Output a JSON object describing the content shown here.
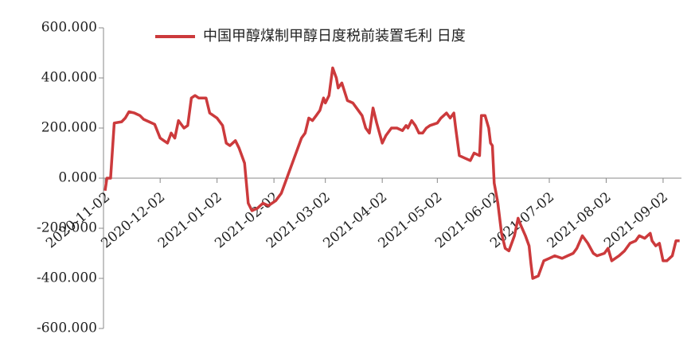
{
  "chart_data": {
    "type": "line",
    "x": [
      "2020-11-02",
      "2020-11-03",
      "2020-11-05",
      "2020-11-07",
      "2020-11-11",
      "2020-11-13",
      "2020-11-15",
      "2020-11-18",
      "2020-11-21",
      "2020-11-23",
      "2020-11-26",
      "2020-11-29",
      "2020-12-02",
      "2020-12-04",
      "2020-12-06",
      "2020-12-08",
      "2020-12-10",
      "2020-12-12",
      "2020-12-15",
      "2020-12-17",
      "2020-12-19",
      "2020-12-21",
      "2020-12-23",
      "2020-12-27",
      "2020-12-29",
      "2021-01-02",
      "2021-01-05",
      "2021-01-07",
      "2021-01-09",
      "2021-01-12",
      "2021-01-14",
      "2021-01-17",
      "2021-01-19",
      "2021-01-21",
      "2021-01-24",
      "2021-01-27",
      "2021-01-30",
      "2021-02-03",
      "2021-02-06",
      "2021-02-09",
      "2021-02-13",
      "2021-02-17",
      "2021-02-19",
      "2021-02-21",
      "2021-02-23",
      "2021-02-25",
      "2021-02-27",
      "2021-03-01",
      "2021-03-02",
      "2021-03-04",
      "2021-03-06",
      "2021-03-08",
      "2021-03-09",
      "2021-03-11",
      "2021-03-14",
      "2021-03-17",
      "2021-03-19",
      "2021-03-22",
      "2021-03-24",
      "2021-03-26",
      "2021-03-28",
      "2021-03-30",
      "2021-04-02",
      "2021-04-04",
      "2021-04-07",
      "2021-04-10",
      "2021-04-13",
      "2021-04-15",
      "2021-04-16",
      "2021-04-18",
      "2021-04-20",
      "2021-04-22",
      "2021-04-24",
      "2021-04-26",
      "2021-04-28",
      "2021-05-02",
      "2021-05-04",
      "2021-05-07",
      "2021-05-09",
      "2021-05-11",
      "2021-05-12",
      "2021-05-14",
      "2021-05-17",
      "2021-05-20",
      "2021-05-22",
      "2021-05-25",
      "2021-05-26",
      "2021-05-28",
      "2021-05-30",
      "2021-05-31",
      "2021-06-01",
      "2021-06-02",
      "2021-06-04",
      "2021-06-06",
      "2021-06-08",
      "2021-06-10",
      "2021-06-13",
      "2021-06-15",
      "2021-06-16",
      "2021-06-19",
      "2021-06-21",
      "2021-06-22",
      "2021-06-23",
      "2021-06-26",
      "2021-06-29",
      "2021-07-02",
      "2021-07-05",
      "2021-07-09",
      "2021-07-12",
      "2021-07-15",
      "2021-07-17",
      "2021-07-20",
      "2021-07-23",
      "2021-07-26",
      "2021-07-28",
      "2021-08-01",
      "2021-08-03",
      "2021-08-05",
      "2021-08-09",
      "2021-08-12",
      "2021-08-15",
      "2021-08-18",
      "2021-08-20",
      "2021-08-23",
      "2021-08-26",
      "2021-08-27",
      "2021-08-29",
      "2021-08-31",
      "2021-09-02",
      "2021-09-04",
      "2021-09-07",
      "2021-09-09",
      "2021-09-11"
    ],
    "series": [
      {
        "name": "中国甲醇煤制甲醇日度税前装置毛利 日度",
        "color": "#cc3a3c",
        "values": [
          -50,
          0,
          0,
          220,
          225,
          240,
          265,
          260,
          250,
          235,
          225,
          215,
          160,
          150,
          140,
          180,
          160,
          230,
          200,
          210,
          320,
          330,
          320,
          320,
          260,
          240,
          210,
          140,
          130,
          150,
          120,
          60,
          -100,
          -130,
          -120,
          -100,
          -110,
          -90,
          -60,
          0,
          80,
          160,
          180,
          240,
          230,
          250,
          270,
          320,
          300,
          330,
          440,
          400,
          360,
          380,
          310,
          300,
          280,
          250,
          200,
          180,
          280,
          220,
          140,
          170,
          200,
          200,
          190,
          210,
          200,
          230,
          210,
          180,
          180,
          200,
          210,
          220,
          240,
          260,
          240,
          260,
          200,
          90,
          80,
          70,
          100,
          90,
          250,
          250,
          200,
          140,
          130,
          -20,
          -100,
          -220,
          -280,
          -290,
          -230,
          -160,
          -180,
          -230,
          -270,
          -340,
          -400,
          -390,
          -330,
          -320,
          -310,
          -320,
          -310,
          -300,
          -280,
          -230,
          -260,
          -300,
          -310,
          -300,
          -280,
          -330,
          -310,
          -290,
          -260,
          -250,
          -230,
          -240,
          -220,
          -250,
          -270,
          -260,
          -330,
          -330,
          -310,
          -250,
          -250
        ]
      }
    ],
    "xlim": [
      "2020-11-02",
      "2021-09-12"
    ],
    "xticks": [
      "2020-11-02",
      "2020-12-02",
      "2021-01-02",
      "2021-02-02",
      "2021-03-02",
      "2021-04-02",
      "2021-05-02",
      "2021-06-02",
      "2021-07-02",
      "2021-08-02",
      "2021-09-02"
    ],
    "ylim": [
      -600,
      600
    ],
    "yticks": [
      {
        "value": -600,
        "label": "-600.000"
      },
      {
        "value": -400,
        "label": "-400.000"
      },
      {
        "value": -200,
        "label": "-200.000"
      },
      {
        "value": 0,
        "label": "0.000"
      },
      {
        "value": 200,
        "label": "200.000"
      },
      {
        "value": 400,
        "label": "400.000"
      },
      {
        "value": 600,
        "label": "600.000"
      }
    ],
    "legend": "top"
  }
}
